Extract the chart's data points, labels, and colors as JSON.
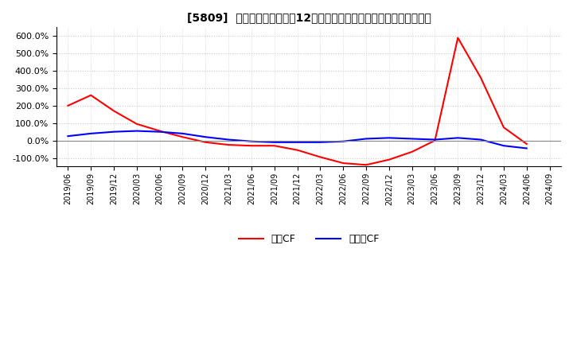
{
  "title": "[5809]  キャッシュフローの12か月移動合計の対前年同期増減率の推移",
  "legend_labels": [
    "営業CF",
    "フリーCF"
  ],
  "line_colors": [
    "#ff0000",
    "#0000ff"
  ],
  "ylim": [
    -150,
    650
  ],
  "yticks": [
    -100,
    0,
    100,
    200,
    300,
    400,
    500,
    600
  ],
  "background_color": "#ffffff",
  "grid_color": "#c8c8c8",
  "dates": [
    "2019/06",
    "2019/09",
    "2019/12",
    "2020/03",
    "2020/06",
    "2020/09",
    "2020/12",
    "2021/03",
    "2021/06",
    "2021/09",
    "2021/12",
    "2022/03",
    "2022/06",
    "2022/09",
    "2022/12",
    "2023/03",
    "2023/06",
    "2023/09",
    "2023/12",
    "2024/03",
    "2024/06",
    "2024/09"
  ],
  "operating_cf": [
    200,
    260,
    170,
    95,
    55,
    20,
    -10,
    -25,
    -30,
    -30,
    -55,
    -95,
    -130,
    -140,
    -110,
    -65,
    0,
    590,
    360,
    75,
    -20,
    null
  ],
  "free_cf": [
    25,
    40,
    50,
    55,
    50,
    40,
    20,
    5,
    -5,
    -10,
    -10,
    -10,
    -5,
    10,
    15,
    10,
    5,
    15,
    5,
    -30,
    -45,
    null
  ]
}
